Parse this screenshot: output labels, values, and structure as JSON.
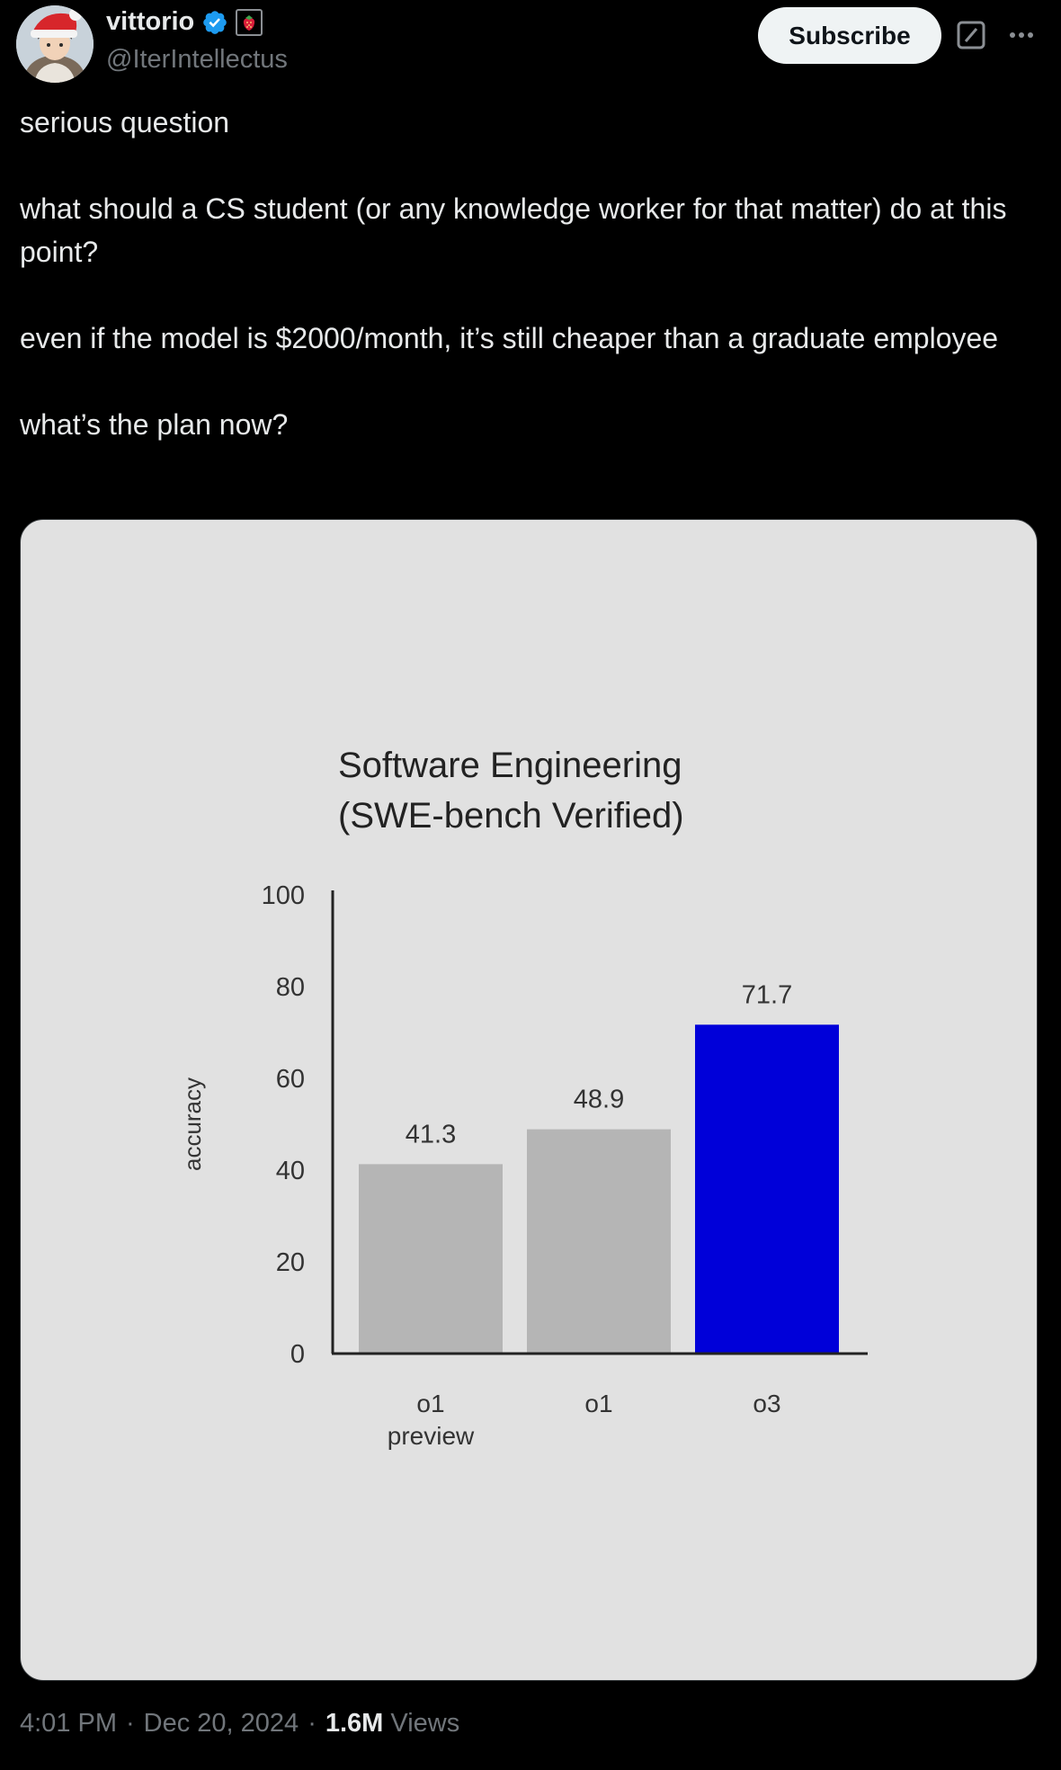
{
  "author": {
    "display_name": "vittorio",
    "handle": "@IterIntellectus",
    "verified_icon": "verified-badge-icon",
    "emoji_icon": "strawberry-icon",
    "avatar_icon": "avatar-anime-santa-hat"
  },
  "header": {
    "subscribe_label": "Subscribe",
    "grok_icon": "grok-icon",
    "more_icon": "more-icon"
  },
  "post": {
    "paragraphs": [
      "serious question",
      "what should a CS student (or any knowledge worker for that matter) do at this point?",
      "even if the model is $2000/month, it’s still cheaper than a graduate employee",
      "what’s the plan now?"
    ]
  },
  "chart_data": {
    "type": "bar",
    "title_lines": [
      "Software Engineering",
      "(SWE-bench Verified)"
    ],
    "ylabel": "accuracy",
    "xlabel": "",
    "ylim": [
      0,
      100
    ],
    "yticks": [
      0,
      20,
      40,
      60,
      80,
      100
    ],
    "categories": [
      [
        "o1",
        "preview"
      ],
      [
        "o1"
      ],
      [
        "o3"
      ]
    ],
    "values": [
      41.3,
      48.9,
      71.7
    ],
    "value_labels": [
      "41.3",
      "48.9",
      "71.7"
    ],
    "bar_colors": [
      "#b5b5b5",
      "#b5b5b5",
      "#0000d9"
    ],
    "grid": false,
    "legend": "none"
  },
  "footer": {
    "time": "4:01 PM",
    "separator": "·",
    "date": "Dec 20, 2024",
    "views_count": "1.6M",
    "views_label": "Views"
  },
  "colors": {
    "background": "#000000",
    "text": "#e7e9ea",
    "muted": "#71767b",
    "verified": "#1d9bf0",
    "chart_bg": "#e1e1e1",
    "highlight_bar": "#0000d9"
  }
}
